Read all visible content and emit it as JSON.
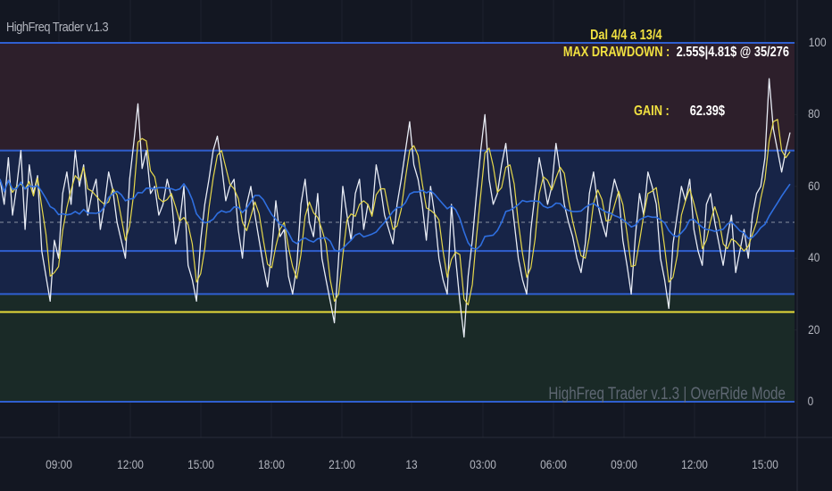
{
  "indicator_title": "HighFreq Trader v.1.3",
  "watermark": "HighFreq Trader v.1.3 | OverRide Mode",
  "stats": {
    "period_label": "Dal 4/4 a 13/4",
    "max_drawdown_label": "MAX DRAWDOWN :",
    "max_drawdown_value": "2.55$|4.81$ @ 35/276",
    "gain_label": "GAIN :",
    "gain_value": "62.39$"
  },
  "colors": {
    "background": "#131722",
    "zone_upper": "#2d1f2b",
    "zone_middle": "#172447",
    "zone_lower": "#1a2a27",
    "level_line": "#2f5fd0",
    "oversold_line": "#e8dc3a",
    "raw_series": "#e8ecf5",
    "fast_series": "#e6d84a",
    "slow_series": "#2f6fe0",
    "text_yellow": "#f0e040"
  },
  "chart_data": {
    "type": "line",
    "title": "HighFreq Trader v.1.3",
    "ylim": [
      -10,
      103
    ],
    "y_ticks": [
      "100",
      "80",
      "60",
      "40",
      "20",
      "0"
    ],
    "y_tick_values": [
      100,
      80,
      60,
      40,
      20,
      0
    ],
    "x_ticks": [
      "09:00",
      "12:00",
      "15:00",
      "18:00",
      "21:00",
      "13",
      "03:00",
      "06:00",
      "09:00",
      "12:00",
      "15:00"
    ],
    "levels": [
      {
        "name": "top",
        "value": 100,
        "style": "solid"
      },
      {
        "name": "overbought",
        "value": 70,
        "style": "solid"
      },
      {
        "name": "midline",
        "value": 50,
        "style": "dashed"
      },
      {
        "name": "level-42",
        "value": 42,
        "style": "solid"
      },
      {
        "name": "level-30",
        "value": 30,
        "style": "solid"
      },
      {
        "name": "oversold",
        "value": 25,
        "style": "solid-yellow"
      },
      {
        "name": "zero",
        "value": 0,
        "style": "solid"
      }
    ],
    "zones": [
      {
        "name": "upper",
        "from": 70,
        "to": 100
      },
      {
        "name": "middle",
        "from": 30,
        "to": 70
      },
      {
        "name": "lower",
        "from": 0,
        "to": 30
      }
    ],
    "series": [
      {
        "name": "raw",
        "values": [
          62,
          55,
          68,
          52,
          60,
          70,
          48,
          66,
          58,
          63,
          42,
          35,
          28,
          45,
          40,
          58,
          64,
          55,
          70,
          60,
          66,
          52,
          58,
          62,
          48,
          55,
          64,
          59,
          50,
          45,
          40,
          62,
          72,
          83,
          65,
          70,
          58,
          60,
          52,
          55,
          62,
          57,
          44,
          50,
          60,
          38,
          34,
          28,
          45,
          55,
          62,
          70,
          74,
          66,
          56,
          60,
          62,
          48,
          40,
          55,
          60,
          52,
          45,
          38,
          32,
          42,
          56,
          46,
          48,
          35,
          30,
          38,
          55,
          62,
          50,
          46,
          58,
          40,
          34,
          28,
          22,
          40,
          60,
          52,
          45,
          58,
          62,
          48,
          55,
          52,
          66,
          60,
          52,
          48,
          44,
          55,
          62,
          70,
          78,
          66,
          62,
          55,
          45,
          60,
          52,
          40,
          34,
          30,
          55,
          40,
          28,
          18,
          35,
          45,
          58,
          70,
          80,
          62,
          55,
          58,
          66,
          72,
          60,
          50,
          40,
          34,
          30,
          48,
          58,
          68,
          62,
          55,
          60,
          72,
          64,
          55,
          50,
          46,
          40,
          36,
          44,
          58,
          64,
          55,
          50,
          46,
          56,
          62,
          58,
          45,
          38,
          30,
          46,
          58,
          52,
          64,
          60,
          55,
          40,
          34,
          26,
          44,
          52,
          60,
          56,
          62,
          48,
          42,
          38,
          55,
          58,
          50,
          44,
          38,
          46,
          52,
          36,
          42,
          48,
          40,
          52,
          58,
          60,
          68,
          90,
          76,
          70,
          64,
          70,
          75
        ]
      },
      {
        "name": "fast",
        "smoothing": 3
      },
      {
        "name": "slow",
        "smoothing": 14
      }
    ]
  }
}
